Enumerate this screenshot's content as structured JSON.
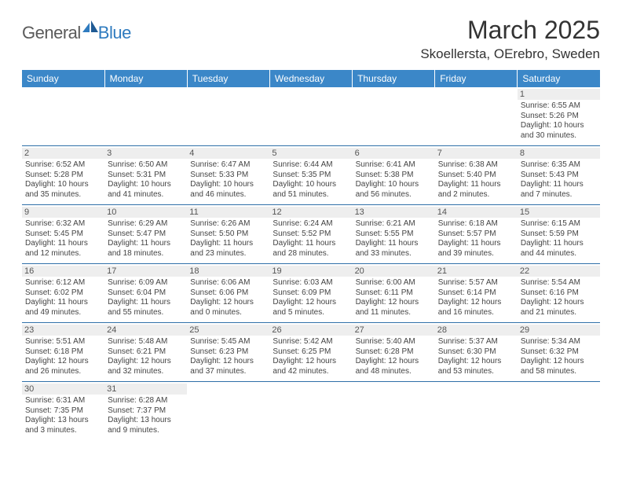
{
  "brand": {
    "part1": "General",
    "part2": "Blue"
  },
  "title": "March 2025",
  "location": "Skoellersta, OErebro, Sweden",
  "colors": {
    "header_bg": "#3b87c8",
    "header_text": "#ffffff",
    "daynum_bg": "#eeeeee",
    "row_border": "#2f6fa8"
  },
  "daysOfWeek": [
    "Sunday",
    "Monday",
    "Tuesday",
    "Wednesday",
    "Thursday",
    "Friday",
    "Saturday"
  ],
  "weeks": [
    [
      null,
      null,
      null,
      null,
      null,
      null,
      {
        "n": "1",
        "sr": "Sunrise: 6:55 AM",
        "ss": "Sunset: 5:26 PM",
        "dl1": "Daylight: 10 hours",
        "dl2": "and 30 minutes."
      }
    ],
    [
      {
        "n": "2",
        "sr": "Sunrise: 6:52 AM",
        "ss": "Sunset: 5:28 PM",
        "dl1": "Daylight: 10 hours",
        "dl2": "and 35 minutes."
      },
      {
        "n": "3",
        "sr": "Sunrise: 6:50 AM",
        "ss": "Sunset: 5:31 PM",
        "dl1": "Daylight: 10 hours",
        "dl2": "and 41 minutes."
      },
      {
        "n": "4",
        "sr": "Sunrise: 6:47 AM",
        "ss": "Sunset: 5:33 PM",
        "dl1": "Daylight: 10 hours",
        "dl2": "and 46 minutes."
      },
      {
        "n": "5",
        "sr": "Sunrise: 6:44 AM",
        "ss": "Sunset: 5:35 PM",
        "dl1": "Daylight: 10 hours",
        "dl2": "and 51 minutes."
      },
      {
        "n": "6",
        "sr": "Sunrise: 6:41 AM",
        "ss": "Sunset: 5:38 PM",
        "dl1": "Daylight: 10 hours",
        "dl2": "and 56 minutes."
      },
      {
        "n": "7",
        "sr": "Sunrise: 6:38 AM",
        "ss": "Sunset: 5:40 PM",
        "dl1": "Daylight: 11 hours",
        "dl2": "and 2 minutes."
      },
      {
        "n": "8",
        "sr": "Sunrise: 6:35 AM",
        "ss": "Sunset: 5:43 PM",
        "dl1": "Daylight: 11 hours",
        "dl2": "and 7 minutes."
      }
    ],
    [
      {
        "n": "9",
        "sr": "Sunrise: 6:32 AM",
        "ss": "Sunset: 5:45 PM",
        "dl1": "Daylight: 11 hours",
        "dl2": "and 12 minutes."
      },
      {
        "n": "10",
        "sr": "Sunrise: 6:29 AM",
        "ss": "Sunset: 5:47 PM",
        "dl1": "Daylight: 11 hours",
        "dl2": "and 18 minutes."
      },
      {
        "n": "11",
        "sr": "Sunrise: 6:26 AM",
        "ss": "Sunset: 5:50 PM",
        "dl1": "Daylight: 11 hours",
        "dl2": "and 23 minutes."
      },
      {
        "n": "12",
        "sr": "Sunrise: 6:24 AM",
        "ss": "Sunset: 5:52 PM",
        "dl1": "Daylight: 11 hours",
        "dl2": "and 28 minutes."
      },
      {
        "n": "13",
        "sr": "Sunrise: 6:21 AM",
        "ss": "Sunset: 5:55 PM",
        "dl1": "Daylight: 11 hours",
        "dl2": "and 33 minutes."
      },
      {
        "n": "14",
        "sr": "Sunrise: 6:18 AM",
        "ss": "Sunset: 5:57 PM",
        "dl1": "Daylight: 11 hours",
        "dl2": "and 39 minutes."
      },
      {
        "n": "15",
        "sr": "Sunrise: 6:15 AM",
        "ss": "Sunset: 5:59 PM",
        "dl1": "Daylight: 11 hours",
        "dl2": "and 44 minutes."
      }
    ],
    [
      {
        "n": "16",
        "sr": "Sunrise: 6:12 AM",
        "ss": "Sunset: 6:02 PM",
        "dl1": "Daylight: 11 hours",
        "dl2": "and 49 minutes."
      },
      {
        "n": "17",
        "sr": "Sunrise: 6:09 AM",
        "ss": "Sunset: 6:04 PM",
        "dl1": "Daylight: 11 hours",
        "dl2": "and 55 minutes."
      },
      {
        "n": "18",
        "sr": "Sunrise: 6:06 AM",
        "ss": "Sunset: 6:06 PM",
        "dl1": "Daylight: 12 hours",
        "dl2": "and 0 minutes."
      },
      {
        "n": "19",
        "sr": "Sunrise: 6:03 AM",
        "ss": "Sunset: 6:09 PM",
        "dl1": "Daylight: 12 hours",
        "dl2": "and 5 minutes."
      },
      {
        "n": "20",
        "sr": "Sunrise: 6:00 AM",
        "ss": "Sunset: 6:11 PM",
        "dl1": "Daylight: 12 hours",
        "dl2": "and 11 minutes."
      },
      {
        "n": "21",
        "sr": "Sunrise: 5:57 AM",
        "ss": "Sunset: 6:14 PM",
        "dl1": "Daylight: 12 hours",
        "dl2": "and 16 minutes."
      },
      {
        "n": "22",
        "sr": "Sunrise: 5:54 AM",
        "ss": "Sunset: 6:16 PM",
        "dl1": "Daylight: 12 hours",
        "dl2": "and 21 minutes."
      }
    ],
    [
      {
        "n": "23",
        "sr": "Sunrise: 5:51 AM",
        "ss": "Sunset: 6:18 PM",
        "dl1": "Daylight: 12 hours",
        "dl2": "and 26 minutes."
      },
      {
        "n": "24",
        "sr": "Sunrise: 5:48 AM",
        "ss": "Sunset: 6:21 PM",
        "dl1": "Daylight: 12 hours",
        "dl2": "and 32 minutes."
      },
      {
        "n": "25",
        "sr": "Sunrise: 5:45 AM",
        "ss": "Sunset: 6:23 PM",
        "dl1": "Daylight: 12 hours",
        "dl2": "and 37 minutes."
      },
      {
        "n": "26",
        "sr": "Sunrise: 5:42 AM",
        "ss": "Sunset: 6:25 PM",
        "dl1": "Daylight: 12 hours",
        "dl2": "and 42 minutes."
      },
      {
        "n": "27",
        "sr": "Sunrise: 5:40 AM",
        "ss": "Sunset: 6:28 PM",
        "dl1": "Daylight: 12 hours",
        "dl2": "and 48 minutes."
      },
      {
        "n": "28",
        "sr": "Sunrise: 5:37 AM",
        "ss": "Sunset: 6:30 PM",
        "dl1": "Daylight: 12 hours",
        "dl2": "and 53 minutes."
      },
      {
        "n": "29",
        "sr": "Sunrise: 5:34 AM",
        "ss": "Sunset: 6:32 PM",
        "dl1": "Daylight: 12 hours",
        "dl2": "and 58 minutes."
      }
    ],
    [
      {
        "n": "30",
        "sr": "Sunrise: 6:31 AM",
        "ss": "Sunset: 7:35 PM",
        "dl1": "Daylight: 13 hours",
        "dl2": "and 3 minutes."
      },
      {
        "n": "31",
        "sr": "Sunrise: 6:28 AM",
        "ss": "Sunset: 7:37 PM",
        "dl1": "Daylight: 13 hours",
        "dl2": "and 9 minutes."
      },
      null,
      null,
      null,
      null,
      null
    ]
  ]
}
